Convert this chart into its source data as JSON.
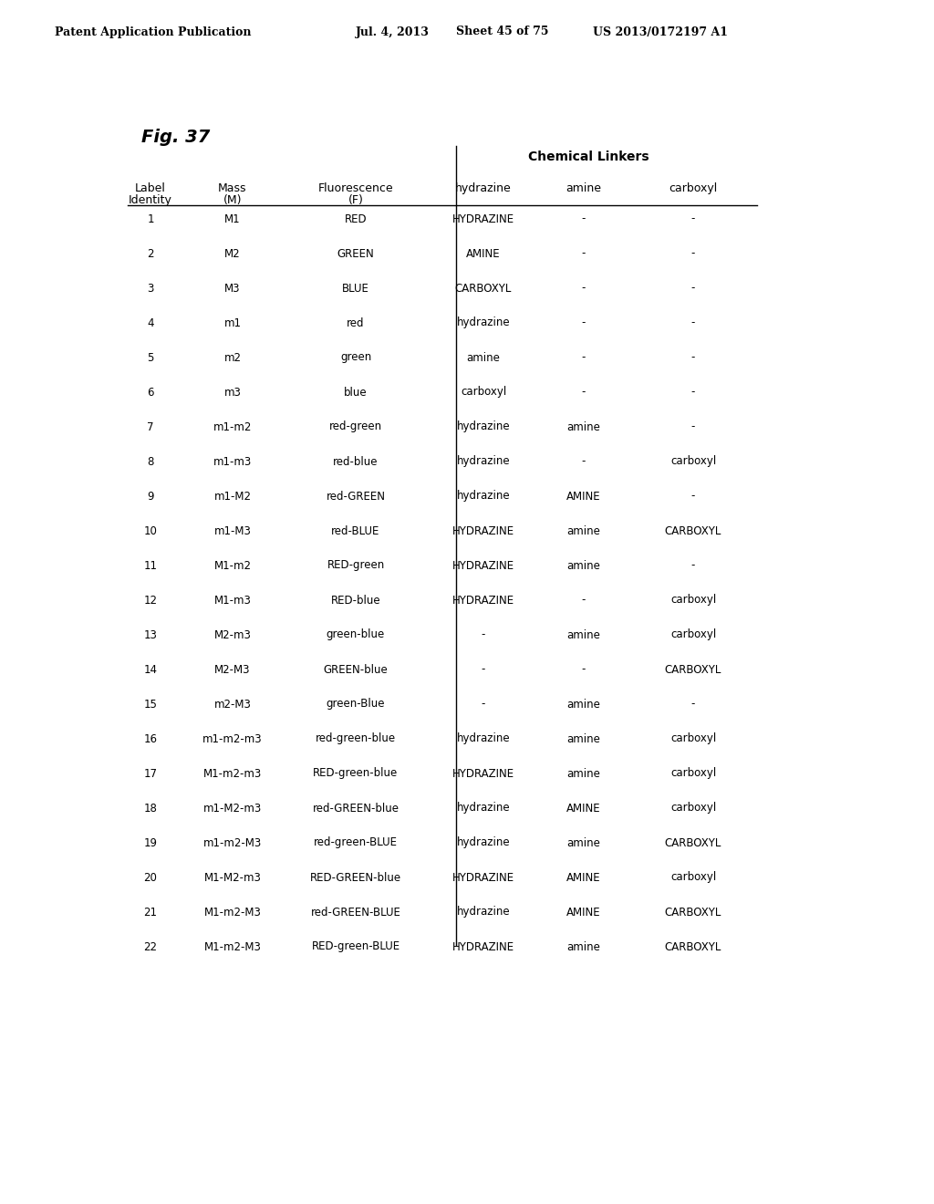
{
  "header_line": "Patent Application Publication    Jul. 4, 2013   Sheet 45 of 75    US 2013/0172197 A1",
  "fig_label": "Fig. 37",
  "table_title": "Chemical Linkers",
  "columns": [
    "Label\nIdentity",
    "Mass\n(M)",
    "Fluorescence\n(F)",
    "hydrazine",
    "amine",
    "carboxyl"
  ],
  "col_headers_row1": [
    "Label",
    "Mass",
    "Fluorescence",
    "",
    "",
    ""
  ],
  "col_headers_row2": [
    "Identity",
    "(M)",
    "(F)",
    "hydrazine",
    "amine",
    "carboxyl"
  ],
  "rows": [
    [
      "1",
      "M1",
      "RED",
      "HYDRAZINE",
      "-",
      "-"
    ],
    [
      "2",
      "M2",
      "GREEN",
      "AMINE",
      "-",
      "-"
    ],
    [
      "3",
      "M3",
      "BLUE",
      "CARBOXYL",
      "-",
      "-"
    ],
    [
      "4",
      "m1",
      "red",
      "hydrazine",
      "-",
      "-"
    ],
    [
      "5",
      "m2",
      "green",
      "amine",
      "-",
      "-"
    ],
    [
      "6",
      "m3",
      "blue",
      "carboxyl",
      "-",
      "-"
    ],
    [
      "7",
      "m1-m2",
      "red-green",
      "hydrazine",
      "amine",
      "-"
    ],
    [
      "8",
      "m1-m3",
      "red-blue",
      "hydrazine",
      "-",
      "carboxyl"
    ],
    [
      "9",
      "m1-M2",
      "red-GREEN",
      "hydrazine",
      "AMINE",
      "-"
    ],
    [
      "10",
      "m1-M3",
      "red-BLUE",
      "HYDRAZINE",
      "amine",
      "CARBOXYL"
    ],
    [
      "11",
      "M1-m2",
      "RED-green",
      "HYDRAZINE",
      "amine",
      "-"
    ],
    [
      "12",
      "M1-m3",
      "RED-blue",
      "HYDRAZINE",
      "-",
      "carboxyl"
    ],
    [
      "13",
      "M2-m3",
      "green-blue",
      "-",
      "amine",
      "carboxyl"
    ],
    [
      "14",
      "M2-M3",
      "GREEN-blue",
      "-",
      "-",
      "CARBOXYL"
    ],
    [
      "15",
      "m2-M3",
      "green-Blue",
      "-",
      "amine",
      "-"
    ],
    [
      "16",
      "m1-m2-m3",
      "red-green-blue",
      "hydrazine",
      "amine",
      "carboxyl"
    ],
    [
      "17",
      "M1-m2-m3",
      "RED-green-blue",
      "HYDRAZINE",
      "amine",
      "carboxyl"
    ],
    [
      "18",
      "m1-M2-m3",
      "red-GREEN-blue",
      "hydrazine",
      "AMINE",
      "carboxyl"
    ],
    [
      "19",
      "m1-m2-M3",
      "red-green-BLUE",
      "hydrazine",
      "amine",
      "CARBOXYL"
    ],
    [
      "20",
      "M1-M2-m3",
      "RED-GREEN-blue",
      "HYDRAZINE",
      "AMINE",
      "carboxyl"
    ],
    [
      "21",
      "M1-m2-M3",
      "red-GREEN-BLUE",
      "hydrazine",
      "AMINE",
      "CARBOXYL"
    ],
    [
      "22",
      "M1-m2-M3",
      "RED-green-BLUE",
      "HYDRAZINE",
      "amine",
      "CARBOXYL"
    ]
  ],
  "background_color": "#ffffff",
  "text_color": "#000000",
  "font_size_header": 9,
  "font_size_body": 8.5,
  "font_size_patent": 9,
  "font_size_fig": 13
}
